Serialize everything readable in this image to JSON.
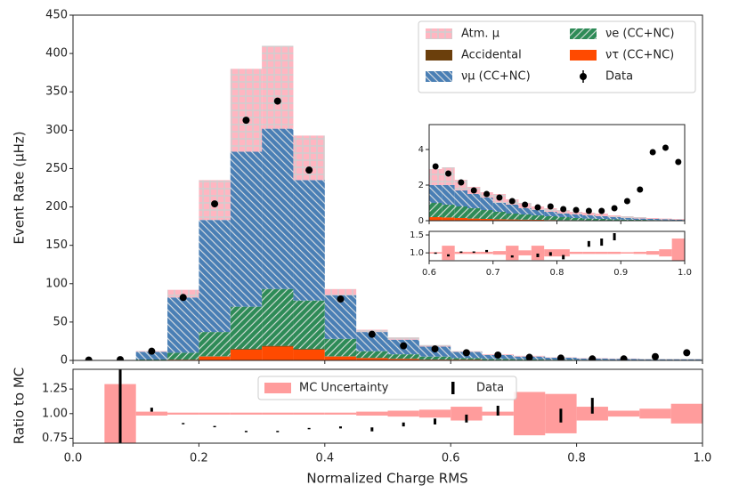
{
  "chart_data": [
    {
      "type": "histogram",
      "ylabel": "Event Rate (μHz)",
      "bins": [
        0,
        0.05,
        0.1,
        0.15,
        0.2,
        0.25,
        0.3,
        0.35,
        0.4,
        0.45,
        0.5,
        0.55,
        0.6,
        0.65,
        0.7,
        0.75,
        0.8,
        0.85,
        0.9,
        0.95,
        1.0
      ],
      "series": [
        {
          "name": "ντ (CC+NC)",
          "color": "#ff4a00",
          "hatch": "",
          "values": [
            0,
            0,
            0.2,
            1,
            5,
            14,
            18,
            14,
            5,
            3,
            2,
            1,
            1,
            0.5,
            0.5,
            0.3,
            0.2,
            0.2,
            0.1,
            0.1
          ]
        },
        {
          "name": "Accidental",
          "color": "#6b3f0c",
          "hatch": "",
          "values": [
            0,
            0,
            0,
            0,
            0.5,
            1,
            1,
            1,
            0.5,
            0.3,
            0.2,
            0.2,
            0.1,
            0.1,
            0.1,
            0.1,
            0.1,
            0.1,
            0.1,
            0.1
          ]
        },
        {
          "name": "νe (CC+NC)",
          "color": "#2e8b57",
          "hatch": "//",
          "values": [
            0,
            0,
            1,
            9,
            31.5,
            55,
            74,
            63,
            22.5,
            8.7,
            5.8,
            3.8,
            1.9,
            1.4,
            0.9,
            0.6,
            0.5,
            0.2,
            0.2,
            0.2
          ]
        },
        {
          "name": "νμ (CC+NC)",
          "color": "#4a7fb5",
          "hatch": "\\\\",
          "values": [
            0,
            0,
            10,
            72,
            146,
            202,
            209,
            157,
            57,
            25,
            19,
            13,
            8,
            5,
            3.5,
            2.5,
            1.7,
            1.5,
            1.1,
            1.1
          ]
        },
        {
          "name": "Atm. μ",
          "color": "#ffb6c1",
          "hatch": "+",
          "values": [
            0,
            0,
            1,
            10,
            52,
            108,
            108,
            58,
            8,
            3,
            3,
            2,
            1,
            1,
            1,
            0.5,
            0.5,
            0.5,
            0.5,
            0.5
          ]
        }
      ],
      "data": {
        "name": "Data",
        "color": "#000000",
        "values": [
          0.5,
          1,
          12,
          82,
          204,
          313,
          338,
          248,
          80,
          34,
          19,
          15,
          10,
          7,
          4,
          3,
          2,
          2,
          5,
          10
        ]
      },
      "xlim": [
        0,
        1
      ],
      "ylim": [
        0,
        450
      ],
      "yticks": [
        0,
        50,
        100,
        150,
        200,
        250,
        300,
        350,
        400,
        450
      ]
    },
    {
      "type": "ratio",
      "ylabel": "Ratio to MC",
      "xlabel": "Normalized Charge RMS",
      "reference": 1,
      "band": {
        "name": "MC Uncertainty",
        "color": "#ff9c9c",
        "errors": [
          null,
          0.3,
          0.02,
          0.01,
          0.01,
          0.01,
          0.01,
          0.01,
          0.01,
          0.02,
          0.03,
          0.04,
          0.07,
          0.02,
          0.22,
          0.2,
          0.07,
          0.03,
          0.05,
          0.1
        ]
      },
      "data": {
        "name": "Data",
        "color": "#000000",
        "values": [
          null,
          1.1,
          1.04,
          0.9,
          0.87,
          0.82,
          0.82,
          0.85,
          0.86,
          0.84,
          0.89,
          0.92,
          0.95,
          1.03,
          null,
          0.98,
          1.08,
          null,
          null,
          null
        ],
        "errors": [
          null,
          0.4,
          0.02,
          0.005,
          0.005,
          0.005,
          0.005,
          0.005,
          0.01,
          0.02,
          0.02,
          0.03,
          0.04,
          0.05,
          null,
          0.07,
          0.08,
          null,
          null,
          null
        ]
      },
      "xlim": [
        0,
        1
      ],
      "ylim": [
        0.7,
        1.45
      ],
      "xticks": [
        {
          "value": 0,
          "label": "0.0"
        },
        0.2,
        0.4,
        0.6,
        0.8,
        {
          "value": 1,
          "label": "1.0"
        }
      ],
      "yticks": [
        0.75,
        {
          "value": 1,
          "label": "1.00"
        },
        1.25
      ]
    },
    {
      "type": "histogram",
      "bins": [
        0.6,
        0.62,
        0.64,
        0.66,
        0.68,
        0.7,
        0.72,
        0.74,
        0.76,
        0.78,
        0.8,
        0.82,
        0.84,
        0.86,
        0.88,
        0.9,
        0.92,
        0.94,
        0.96,
        0.98,
        1.0
      ],
      "series": [
        {
          "color": "#ff4a00",
          "hatch": "",
          "values": [
            0.2,
            0.18,
            0.15,
            0.12,
            0.1,
            0.08,
            0.07,
            0.06,
            0.05,
            0.04,
            0.03,
            0.03,
            0.02,
            0.02,
            0.02,
            0.01,
            0.01,
            0.01,
            0.01,
            0.01
          ]
        },
        {
          "color": "#2e8b57",
          "hatch": "//",
          "values": [
            0.8,
            0.72,
            0.65,
            0.58,
            0.5,
            0.42,
            0.33,
            0.29,
            0.25,
            0.21,
            0.17,
            0.12,
            0.1,
            0.08,
            0.06,
            0.05,
            0.04,
            0.03,
            0.02,
            0.01
          ]
        },
        {
          "color": "#4a7fb5",
          "hatch": "\\\\",
          "values": [
            1.0,
            1.1,
            0.9,
            0.8,
            0.7,
            0.5,
            0.5,
            0.35,
            0.3,
            0.25,
            0.2,
            0.2,
            0.18,
            0.15,
            0.12,
            0.09,
            0.07,
            0.06,
            0.05,
            0.04
          ]
        },
        {
          "color": "#ffb6c1",
          "hatch": "+",
          "values": [
            0.9,
            1.0,
            0.6,
            0.4,
            0.3,
            0.5,
            0.3,
            0.3,
            0.2,
            0.2,
            0.2,
            0.15,
            0.15,
            0.15,
            0.1,
            0.1,
            0.08,
            0.05,
            0.04,
            0.04
          ]
        }
      ],
      "data": {
        "color": "#000000",
        "values": [
          3.05,
          2.65,
          2.15,
          1.7,
          1.5,
          1.3,
          1.1,
          0.9,
          0.75,
          0.8,
          0.65,
          0.6,
          0.55,
          0.55,
          0.7,
          1.1,
          1.75,
          3.85,
          4.1,
          3.3
        ]
      },
      "xlim": [
        0.6,
        1
      ],
      "ylim": [
        0,
        5.4
      ],
      "yticks": [
        0,
        2,
        4
      ]
    },
    {
      "type": "ratio",
      "reference": 1,
      "band": {
        "color": "#ff9c9c",
        "errors": [
          0.02,
          0.2,
          0.03,
          0.03,
          0.03,
          0.05,
          0.2,
          0.07,
          0.2,
          0.1,
          0.1,
          0.03,
          0.03,
          0.03,
          0.03,
          0.02,
          0.03,
          0.05,
          0.1,
          0.4
        ]
      },
      "data": {
        "color": "#000000",
        "values": [
          1.0,
          0.93,
          1.02,
          1.02,
          1.05,
          null,
          0.9,
          null,
          0.93,
          0.97,
          0.88,
          null,
          1.25,
          1.3,
          1.45,
          null,
          null,
          null,
          null,
          null
        ],
        "errors": [
          0.01,
          0.03,
          0.02,
          0.02,
          0.03,
          null,
          0.03,
          null,
          0.05,
          0.05,
          0.06,
          null,
          0.08,
          0.1,
          0.1,
          null,
          null,
          null,
          null,
          null
        ]
      },
      "xlim": [
        0.6,
        1
      ],
      "ylim": [
        0.78,
        1.6
      ],
      "xticks": [
        0.6,
        0.7,
        0.8,
        0.9,
        {
          "value": 1,
          "label": "1.0"
        }
      ],
      "yticks": [
        {
          "value": 1,
          "label": "1.0"
        },
        1.5
      ]
    }
  ]
}
